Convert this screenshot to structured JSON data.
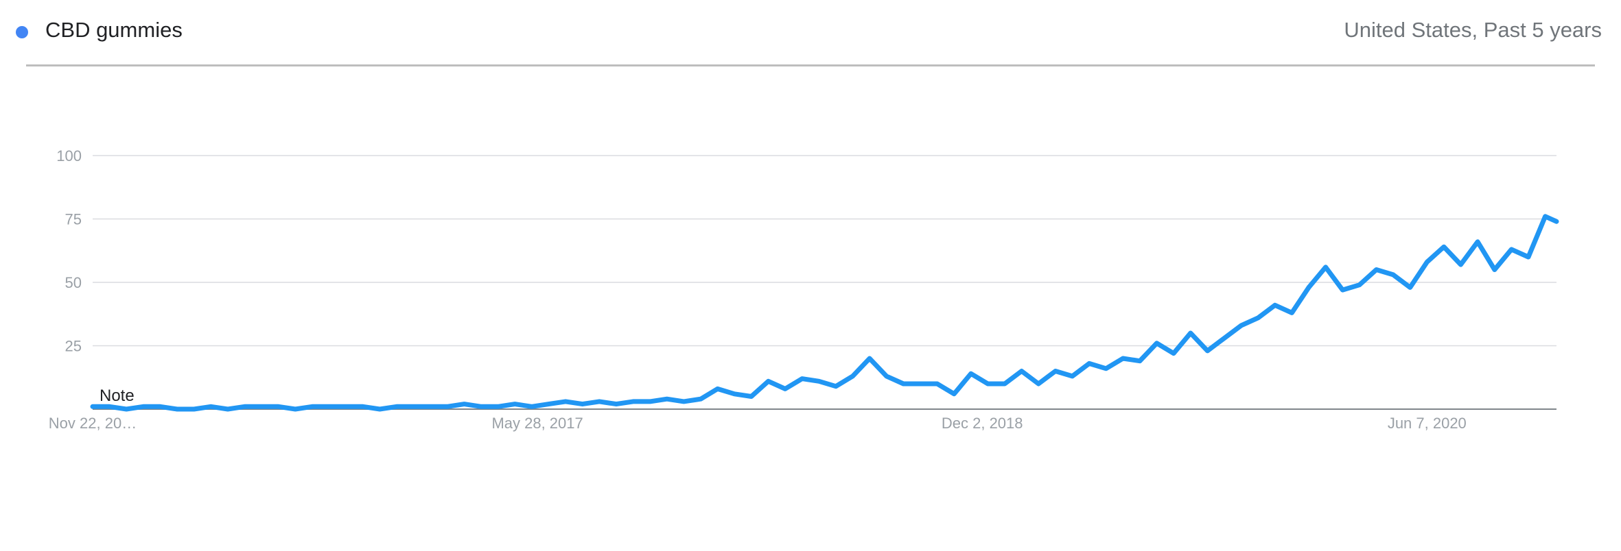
{
  "legend": {
    "term": "CBD gummies",
    "color": "#4285f4"
  },
  "context": "United States, Past 5 years",
  "note_label": "Note",
  "colors": {
    "line": "#2196f3",
    "grid": "#dadce0",
    "axis": "#80868b",
    "tick_label": "#9aa0a6",
    "x_tick_label": "#9aa0a6"
  },
  "chart_data": {
    "type": "line",
    "title": "",
    "xlabel": "",
    "ylabel": "",
    "ylim": [
      0,
      100
    ],
    "grid": true,
    "y_ticks": [
      25,
      50,
      75,
      100
    ],
    "x_tick_labels": [
      "Nov 22, 20…",
      "May 28, 2017",
      "Dec 2, 2018",
      "Jun 7, 2020"
    ],
    "x_tick_dates": [
      "2015-11-22",
      "2017-05-28",
      "2018-12-02",
      "2020-06-07"
    ],
    "x_start": "2015-11-22",
    "x_end": "2020-11-15",
    "series": [
      {
        "name": "CBD gummies",
        "color": "#2196f3",
        "points": [
          [
            "2015-11-22",
            1
          ],
          [
            "2015-12-13",
            1
          ],
          [
            "2016-01-03",
            0
          ],
          [
            "2016-01-24",
            1
          ],
          [
            "2016-02-14",
            1
          ],
          [
            "2016-03-06",
            0
          ],
          [
            "2016-03-27",
            0
          ],
          [
            "2016-04-17",
            1
          ],
          [
            "2016-05-08",
            0
          ],
          [
            "2016-05-29",
            1
          ],
          [
            "2016-06-19",
            1
          ],
          [
            "2016-07-10",
            1
          ],
          [
            "2016-07-31",
            0
          ],
          [
            "2016-08-21",
            1
          ],
          [
            "2016-09-11",
            1
          ],
          [
            "2016-10-02",
            1
          ],
          [
            "2016-10-23",
            1
          ],
          [
            "2016-11-13",
            0
          ],
          [
            "2016-12-04",
            1
          ],
          [
            "2016-12-25",
            1
          ],
          [
            "2017-01-15",
            1
          ],
          [
            "2017-02-05",
            1
          ],
          [
            "2017-02-26",
            2
          ],
          [
            "2017-03-19",
            1
          ],
          [
            "2017-04-09",
            1
          ],
          [
            "2017-04-30",
            2
          ],
          [
            "2017-05-21",
            1
          ],
          [
            "2017-06-11",
            2
          ],
          [
            "2017-07-02",
            3
          ],
          [
            "2017-07-23",
            2
          ],
          [
            "2017-08-13",
            3
          ],
          [
            "2017-09-03",
            2
          ],
          [
            "2017-09-24",
            3
          ],
          [
            "2017-10-15",
            3
          ],
          [
            "2017-11-05",
            4
          ],
          [
            "2017-11-26",
            3
          ],
          [
            "2017-12-17",
            4
          ],
          [
            "2018-01-07",
            8
          ],
          [
            "2018-01-28",
            6
          ],
          [
            "2018-02-18",
            5
          ],
          [
            "2018-03-11",
            11
          ],
          [
            "2018-04-01",
            8
          ],
          [
            "2018-04-22",
            12
          ],
          [
            "2018-05-13",
            11
          ],
          [
            "2018-06-03",
            9
          ],
          [
            "2018-06-24",
            13
          ],
          [
            "2018-07-15",
            20
          ],
          [
            "2018-08-05",
            13
          ],
          [
            "2018-08-26",
            10
          ],
          [
            "2018-09-16",
            10
          ],
          [
            "2018-10-07",
            10
          ],
          [
            "2018-10-28",
            6
          ],
          [
            "2018-11-18",
            14
          ],
          [
            "2018-12-09",
            10
          ],
          [
            "2018-12-30",
            10
          ],
          [
            "2019-01-20",
            15
          ],
          [
            "2019-02-10",
            10
          ],
          [
            "2019-03-03",
            15
          ],
          [
            "2019-03-24",
            13
          ],
          [
            "2019-04-14",
            18
          ],
          [
            "2019-05-05",
            16
          ],
          [
            "2019-05-26",
            20
          ],
          [
            "2019-06-16",
            19
          ],
          [
            "2019-07-07",
            26
          ],
          [
            "2019-07-28",
            22
          ],
          [
            "2019-08-18",
            30
          ],
          [
            "2019-09-08",
            23
          ],
          [
            "2019-09-29",
            28
          ],
          [
            "2019-10-20",
            33
          ],
          [
            "2019-11-10",
            36
          ],
          [
            "2019-12-01",
            41
          ],
          [
            "2019-12-22",
            38
          ],
          [
            "2020-01-12",
            48
          ],
          [
            "2020-02-02",
            56
          ],
          [
            "2020-02-23",
            47
          ],
          [
            "2020-03-15",
            49
          ],
          [
            "2020-04-05",
            55
          ],
          [
            "2020-04-26",
            53
          ],
          [
            "2020-05-17",
            48
          ],
          [
            "2020-06-07",
            58
          ],
          [
            "2020-06-28",
            64
          ],
          [
            "2020-07-19",
            57
          ],
          [
            "2020-08-09",
            66
          ],
          [
            "2020-08-30",
            55
          ],
          [
            "2020-09-20",
            63
          ],
          [
            "2020-10-11",
            60
          ],
          [
            "2020-11-01",
            76
          ],
          [
            "2020-11-15",
            74
          ]
        ]
      }
    ]
  }
}
